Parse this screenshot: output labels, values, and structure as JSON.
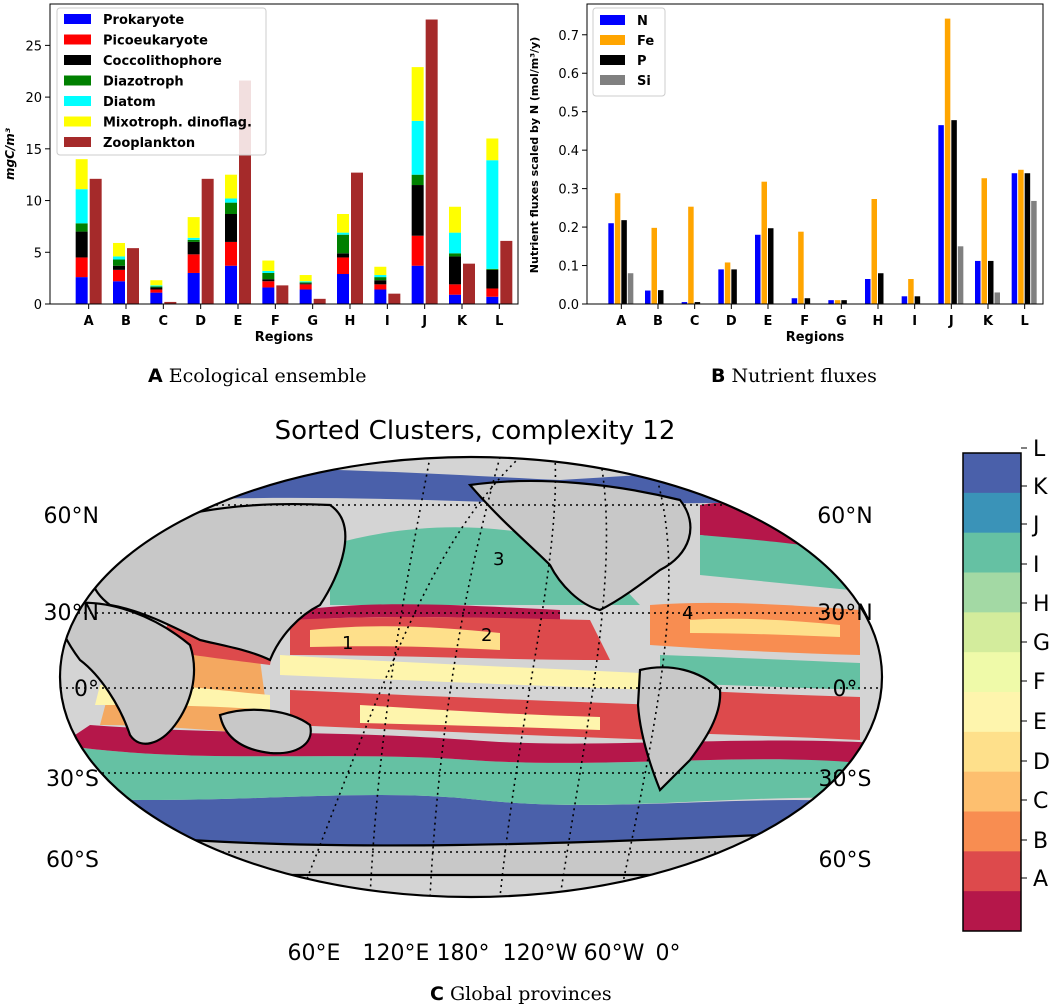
{
  "panels": {
    "a": {
      "letter": "A",
      "caption": "Ecological ensemble"
    },
    "b": {
      "letter": "B",
      "caption": "Nutrient fluxes"
    },
    "c": {
      "letter": "C",
      "caption": "Global provinces"
    }
  },
  "chart_data": [
    {
      "id": "ecological-ensemble",
      "type": "bar",
      "title": "",
      "xlabel": "Regions",
      "ylabel": "mgC/m³",
      "ylim": [
        0,
        29
      ],
      "yticks": [
        0,
        5,
        10,
        15,
        20,
        25
      ],
      "categories": [
        "A",
        "B",
        "C",
        "D",
        "E",
        "F",
        "G",
        "H",
        "I",
        "J",
        "K",
        "L"
      ],
      "legend_position": "top-left",
      "stacked_series": [
        {
          "name": "Prokaryote",
          "color": "#0000ff",
          "values": [
            2.6,
            2.2,
            1.1,
            3.0,
            3.7,
            1.6,
            1.4,
            2.9,
            1.4,
            3.7,
            0.9,
            0.7
          ]
        },
        {
          "name": "Picoeukaryote",
          "color": "#ff0000",
          "values": [
            1.9,
            1.1,
            0.3,
            1.8,
            2.3,
            0.6,
            0.5,
            1.6,
            0.5,
            2.9,
            1.0,
            0.8
          ]
        },
        {
          "name": "Coccolithophore",
          "color": "#000000",
          "values": [
            2.5,
            0.4,
            0.2,
            1.2,
            2.7,
            0.2,
            0.1,
            0.4,
            0.4,
            4.9,
            2.7,
            1.8
          ]
        },
        {
          "name": "Diazotroph",
          "color": "#008000",
          "values": [
            0.8,
            0.6,
            0.1,
            0.2,
            1.1,
            0.6,
            0.1,
            1.8,
            0.3,
            1.0,
            0.3,
            0.1
          ]
        },
        {
          "name": "Diatom",
          "color": "#00ffff",
          "values": [
            3.3,
            0.3,
            0.1,
            0.2,
            0.4,
            0.2,
            0.1,
            0.2,
            0.2,
            5.2,
            2.0,
            10.5
          ]
        },
        {
          "name": "Mixotroph. dinoflag.",
          "color": "#ffff00",
          "values": [
            2.9,
            1.3,
            0.5,
            2.0,
            2.3,
            1.0,
            0.6,
            1.8,
            0.8,
            5.2,
            2.5,
            2.1
          ]
        }
      ],
      "side_series": {
        "name": "Zooplankton",
        "color": "#a52a2a",
        "values": [
          12.1,
          5.4,
          0.2,
          12.1,
          21.6,
          1.8,
          0.5,
          12.7,
          1.0,
          27.5,
          3.9,
          6.1
        ]
      }
    },
    {
      "id": "nutrient-fluxes",
      "type": "bar",
      "title": "",
      "xlabel": "Regions",
      "ylabel": "Nutrient fluxes scaled by N (mol/m³/y)",
      "ylim": [
        0,
        0.78
      ],
      "yticks": [
        0.0,
        0.1,
        0.2,
        0.3,
        0.4,
        0.5,
        0.6,
        0.7
      ],
      "categories": [
        "A",
        "B",
        "C",
        "D",
        "E",
        "F",
        "G",
        "H",
        "I",
        "J",
        "K",
        "L"
      ],
      "legend_position": "top-left",
      "series": [
        {
          "name": "N",
          "color": "#0000ff",
          "values": [
            0.21,
            0.035,
            0.005,
            0.09,
            0.18,
            0.015,
            0.01,
            0.065,
            0.02,
            0.465,
            0.112,
            0.34
          ]
        },
        {
          "name": "Fe",
          "color": "#ffa500",
          "values": [
            0.288,
            0.198,
            0.253,
            0.108,
            0.318,
            0.188,
            0.01,
            0.273,
            0.065,
            0.742,
            0.327,
            0.349
          ]
        },
        {
          "name": "P",
          "color": "#000000",
          "values": [
            0.218,
            0.036,
            0.005,
            0.09,
            0.197,
            0.015,
            0.01,
            0.08,
            0.02,
            0.478,
            0.112,
            0.34
          ]
        },
        {
          "name": "Si",
          "color": "#808080",
          "values": [
            0.08,
            0.0,
            0.0,
            0.0,
            0.0,
            0.0,
            0.0,
            0.0,
            0.0,
            0.15,
            0.03,
            0.268
          ]
        }
      ]
    },
    {
      "id": "global-provinces",
      "type": "map",
      "title": "Sorted Clusters, complexity 12",
      "lat_labels_left": [
        "60°N",
        "30°N",
        "0°",
        "30°S",
        "60°S"
      ],
      "lat_labels_right": [
        "60°N",
        "30°N",
        "0°",
        "30°S",
        "60°S"
      ],
      "lon_labels": [
        "60°E",
        "120°E",
        "180°",
        "120°W",
        "60°W",
        "0°"
      ],
      "region_numbers": [
        "1",
        "2",
        "3",
        "4"
      ],
      "colorbar": {
        "labels": [
          "L",
          "K",
          "J",
          "I",
          "H",
          "G",
          "F",
          "E",
          "D",
          "C",
          "B",
          "A"
        ],
        "colors": [
          "#4a60aa",
          "#3a93b8",
          "#65c1a3",
          "#a3d9a4",
          "#d3ec9c",
          "#effaa9",
          "#fef5ad",
          "#fee08b",
          "#fdbf6f",
          "#f88d51",
          "#dd4a4c",
          "#b5174a"
        ]
      }
    }
  ]
}
